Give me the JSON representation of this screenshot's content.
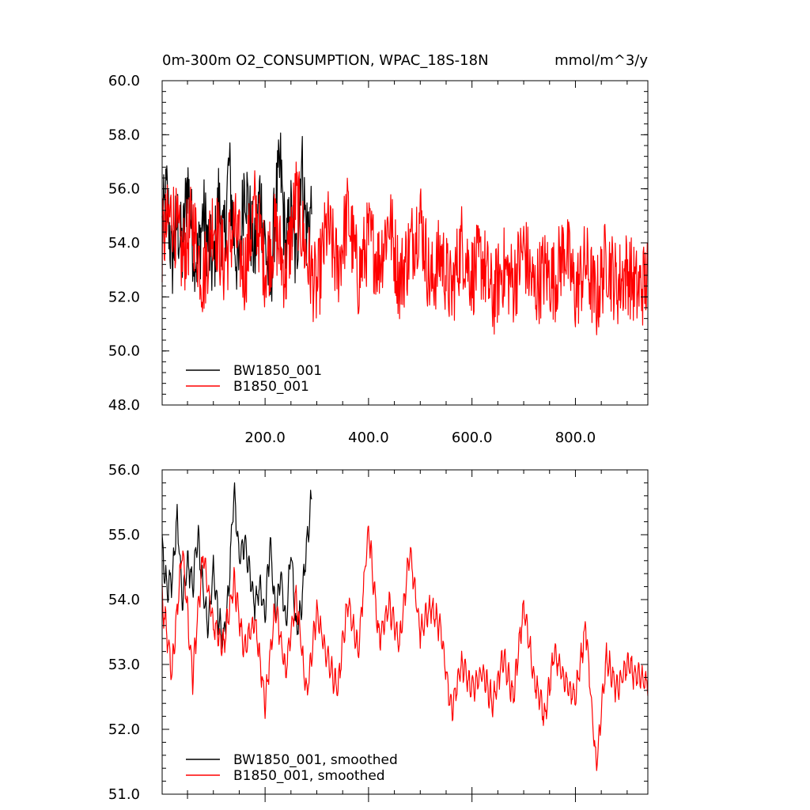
{
  "chart_data": [
    {
      "type": "line",
      "title": "0m-300m O2_CONSUMPTION, WPAC_18S-18N",
      "units": "mmol/m^3/y",
      "xlim": [
        1,
        940
      ],
      "ylim": [
        48.0,
        60.0
      ],
      "x_ticks": [
        200.0,
        400.0,
        600.0,
        800.0
      ],
      "x_tick_labels": [
        "200.0",
        "400.0",
        "600.0",
        "800.0"
      ],
      "y_ticks": [
        48.0,
        50.0,
        52.0,
        54.0,
        56.0,
        58.0,
        60.0
      ],
      "y_tick_labels": [
        "48.0",
        "50.0",
        "52.0",
        "54.0",
        "56.0",
        "58.0",
        "60.0"
      ],
      "legend_position": "bottom-left",
      "series": [
        {
          "name": "BW1850_001",
          "color": "#000000",
          "x": [
            1,
            10,
            20,
            30,
            40,
            50,
            60,
            70,
            80,
            90,
            100,
            110,
            120,
            130,
            140,
            150,
            160,
            170,
            180,
            190,
            200,
            210,
            220,
            230,
            240,
            250,
            260,
            270,
            280,
            290
          ],
          "values": [
            54.5,
            55.8,
            53.2,
            54.9,
            53.6,
            56.4,
            54.1,
            53.3,
            55.1,
            54.0,
            52.9,
            55.6,
            53.8,
            56.9,
            54.2,
            52.8,
            56.6,
            54.9,
            53.4,
            55.9,
            54.0,
            52.4,
            55.4,
            56.8,
            53.6,
            55.0,
            53.1,
            57.2,
            54.4,
            55.3
          ]
        },
        {
          "name": "B1850_001",
          "color": "#ff0000",
          "x": [
            1,
            20,
            40,
            60,
            80,
            100,
            120,
            140,
            160,
            180,
            200,
            220,
            240,
            260,
            280,
            300,
            320,
            340,
            360,
            380,
            400,
            420,
            440,
            460,
            480,
            500,
            520,
            540,
            560,
            580,
            600,
            620,
            640,
            660,
            680,
            700,
            720,
            740,
            760,
            780,
            800,
            820,
            840,
            860,
            880,
            900,
            920,
            940
          ],
          "values": [
            54.0,
            55.2,
            53.4,
            54.8,
            52.6,
            55.0,
            53.2,
            54.6,
            52.9,
            55.3,
            53.1,
            54.4,
            52.8,
            55.7,
            53.5,
            52.2,
            54.6,
            53.0,
            55.1,
            52.7,
            54.2,
            53.3,
            54.9,
            52.6,
            53.8,
            55.0,
            52.4,
            53.6,
            52.1,
            54.0,
            52.8,
            53.4,
            51.9,
            53.1,
            52.5,
            53.8,
            52.2,
            53.0,
            52.6,
            53.9,
            52.1,
            53.3,
            51.8,
            53.5,
            52.4,
            53.0,
            52.2,
            52.7
          ]
        }
      ]
    },
    {
      "type": "line",
      "xlim": [
        1,
        940
      ],
      "ylim": [
        51.0,
        56.0
      ],
      "y_ticks": [
        51.0,
        52.0,
        53.0,
        54.0,
        55.0,
        56.0
      ],
      "y_tick_labels": [
        "51.0",
        "52.0",
        "53.0",
        "54.0",
        "55.0",
        "56.0"
      ],
      "legend_position": "bottom-left",
      "series": [
        {
          "name": "BW1850_001, smoothed",
          "color": "#000000",
          "x": [
            1,
            10,
            20,
            30,
            40,
            50,
            60,
            70,
            80,
            90,
            100,
            110,
            120,
            130,
            140,
            150,
            160,
            170,
            180,
            190,
            200,
            210,
            220,
            230,
            240,
            250,
            260,
            270,
            280,
            290
          ],
          "values": [
            54.8,
            54.2,
            54.3,
            55.3,
            54.0,
            54.6,
            54.2,
            55.0,
            54.1,
            53.6,
            54.5,
            53.7,
            53.4,
            54.2,
            55.7,
            54.6,
            54.9,
            54.4,
            53.9,
            54.2,
            53.8,
            54.9,
            53.7,
            54.4,
            53.6,
            54.8,
            53.5,
            53.9,
            54.8,
            55.6
          ]
        },
        {
          "name": "B1850_001, smoothed",
          "color": "#ff0000",
          "x": [
            1,
            20,
            40,
            60,
            80,
            100,
            120,
            140,
            160,
            180,
            200,
            220,
            240,
            260,
            280,
            300,
            320,
            340,
            360,
            380,
            400,
            420,
            440,
            460,
            480,
            500,
            520,
            540,
            560,
            580,
            600,
            620,
            640,
            660,
            680,
            700,
            720,
            740,
            760,
            780,
            800,
            820,
            840,
            860,
            880,
            900,
            920,
            940
          ],
          "values": [
            54.0,
            52.9,
            54.8,
            52.8,
            54.7,
            53.6,
            53.3,
            54.3,
            53.2,
            53.7,
            52.4,
            53.9,
            52.9,
            54.1,
            52.5,
            53.8,
            53.1,
            52.6,
            54.0,
            53.2,
            55.1,
            53.4,
            53.9,
            53.3,
            54.8,
            53.5,
            53.9,
            53.5,
            52.3,
            53.0,
            52.6,
            52.9,
            52.4,
            53.1,
            52.5,
            53.9,
            52.8,
            52.2,
            53.2,
            52.7,
            52.5,
            53.6,
            51.4,
            53.1,
            52.6,
            53.0,
            52.8,
            52.7
          ]
        }
      ]
    }
  ]
}
